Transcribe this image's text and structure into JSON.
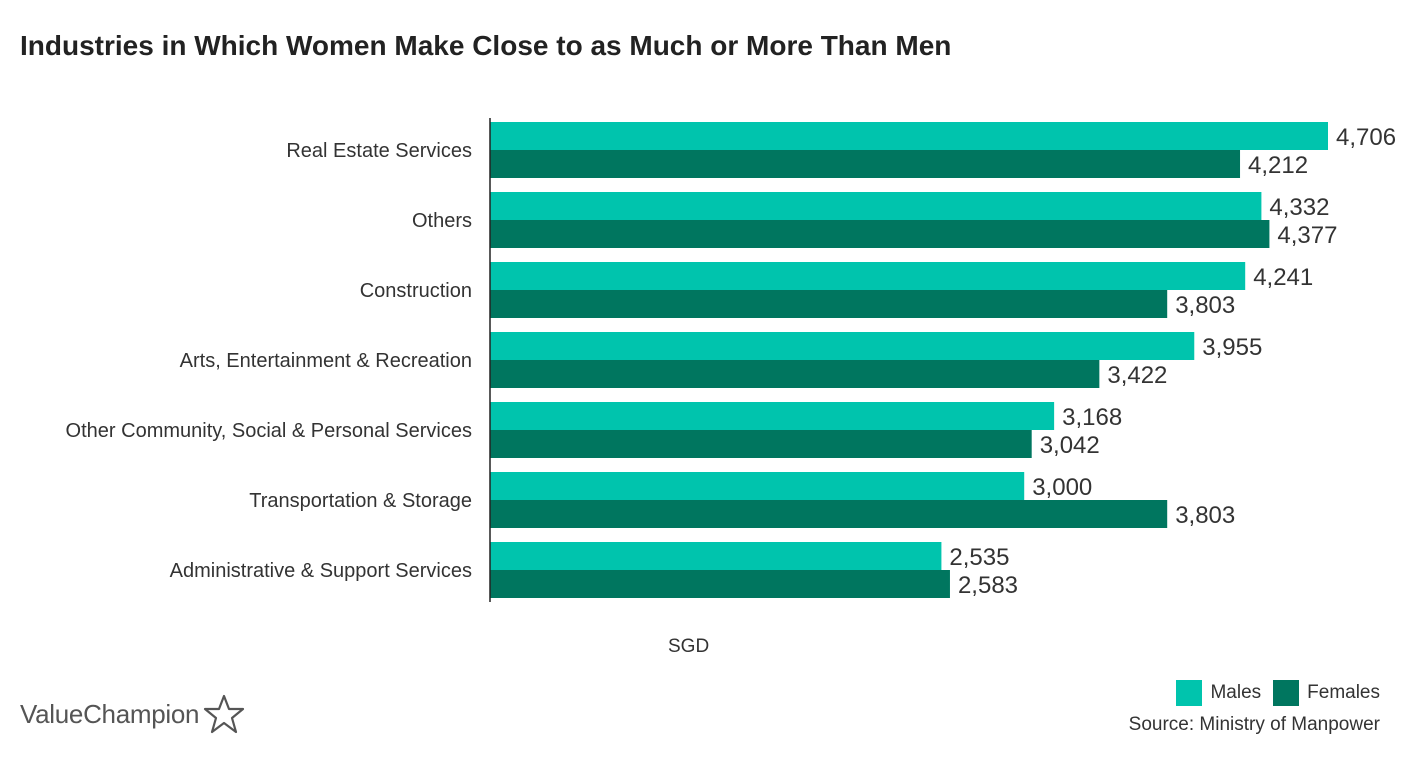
{
  "title": "Industries in Which Women Make Close to as Much or More Than Men",
  "brand": {
    "name": "ValueChampion",
    "icon": "star-outline-icon"
  },
  "source": "Source: Ministry of Manpower",
  "colors": {
    "males": "#00c4ad",
    "females": "#00765f"
  },
  "chart_data": {
    "type": "bar",
    "orientation": "horizontal",
    "categories": [
      "Real Estate Services",
      "Others",
      "Construction",
      "Arts, Entertainment & Recreation",
      "Other Community, Social & Personal Services",
      "Transportation & Storage",
      "Administrative & Support Services"
    ],
    "series": [
      {
        "name": "Males",
        "values": [
          4706,
          4332,
          4241,
          3955,
          3168,
          3000,
          2535
        ]
      },
      {
        "name": "Females",
        "values": [
          4212,
          4377,
          3803,
          3422,
          3042,
          3803,
          2583
        ]
      }
    ],
    "value_labels": [
      [
        "4,706",
        "4,332",
        "4,241",
        "3,955",
        "3,168",
        "3,000",
        "2,535"
      ],
      [
        "4,212",
        "4,377",
        "3,803",
        "3,422",
        "3,042",
        "3,803",
        "2,583"
      ]
    ],
    "xlabel": "SGD",
    "ylabel": "",
    "xlim": [
      0,
      4706
    ],
    "grid": false,
    "legend": "bottom-right"
  }
}
